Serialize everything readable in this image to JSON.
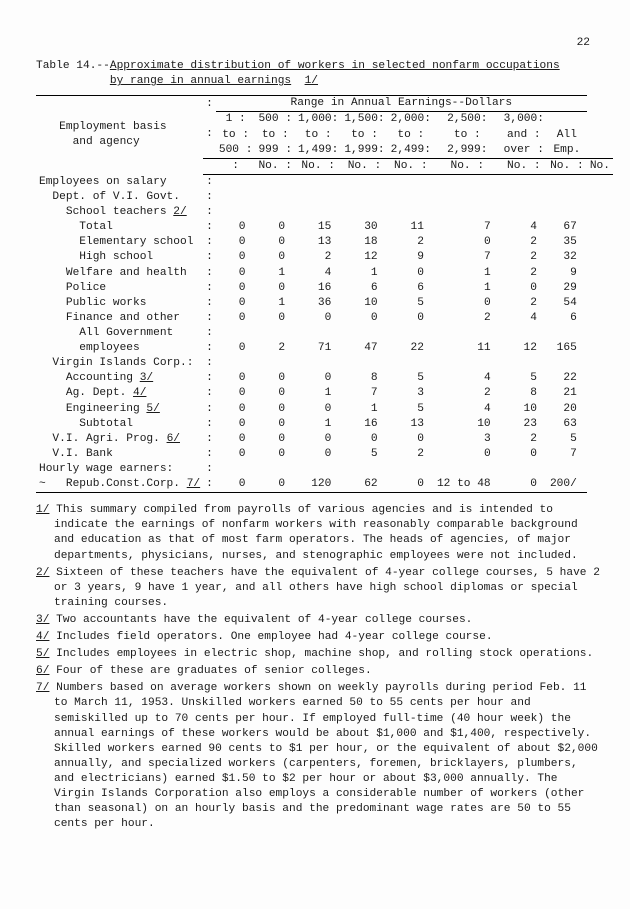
{
  "page_number": "22",
  "title_prefix": "Table 14.--",
  "title_line1": "Approximate distribution of workers in selected nonfarm occupations",
  "title_line2": "by range in annual earnings",
  "title_fn": "1/",
  "header": {
    "spanner": "Range in Annual Earnings--Dollars",
    "stub1": "Employment basis",
    "stub2": "and agency",
    "col_r1": [
      "1",
      "500",
      "1,000:",
      "1,500:",
      "2,000:",
      "2,500:",
      "3,000:",
      ""
    ],
    "col_r2": [
      "to",
      "to",
      "to  :",
      "to  :",
      "to  :",
      "to  :",
      "and :",
      "All"
    ],
    "col_r3": [
      "500",
      "999",
      "1,499:",
      "1,999:",
      "2,499:",
      "2,999:",
      "over :",
      "Emp."
    ],
    "unit_row": [
      "No. :",
      "No. :",
      "No. :",
      "No. :",
      "No. :",
      "No. :",
      "No. :",
      "No."
    ]
  },
  "rows": [
    {
      "label": "Employees on salary",
      "indent": 0,
      "vals": [
        "",
        "",
        "",
        "",
        "",
        "",
        "",
        ""
      ]
    },
    {
      "label": "Dept. of V.I. Govt.",
      "indent": 1,
      "vals": [
        "",
        "",
        "",
        "",
        "",
        "",
        "",
        ""
      ]
    },
    {
      "label": "School teachers ",
      "fn": "2/",
      "indent": 2,
      "vals": [
        "",
        "",
        "",
        "",
        "",
        "",
        "",
        ""
      ]
    },
    {
      "label": "Total",
      "indent": 3,
      "vals": [
        "0",
        "0",
        "15",
        "30",
        "11",
        "7",
        "4",
        "67"
      ]
    },
    {
      "label": "Elementary school",
      "indent": 3,
      "vals": [
        "0",
        "0",
        "13",
        "18",
        "2",
        "0",
        "2",
        "35"
      ]
    },
    {
      "label": "High school",
      "indent": 3,
      "vals": [
        "0",
        "0",
        "2",
        "12",
        "9",
        "7",
        "2",
        "32"
      ]
    },
    {
      "label": "Welfare and health",
      "indent": 2,
      "vals": [
        "0",
        "1",
        "4",
        "1",
        "0",
        "1",
        "2",
        "9"
      ]
    },
    {
      "label": "Police",
      "indent": 2,
      "vals": [
        "0",
        "0",
        "16",
        "6",
        "6",
        "1",
        "0",
        "29"
      ]
    },
    {
      "label": "Public works",
      "indent": 2,
      "vals": [
        "0",
        "1",
        "36",
        "10",
        "5",
        "0",
        "2",
        "54"
      ]
    },
    {
      "label": "Finance and other",
      "indent": 2,
      "vals": [
        "0",
        "0",
        "0",
        "0",
        "0",
        "2",
        "4",
        "6"
      ]
    },
    {
      "label": "All Government",
      "indent": 3,
      "vals": [
        "",
        "",
        "",
        "",
        "",
        "",
        "",
        ""
      ]
    },
    {
      "label": "employees",
      "indent": 3,
      "extra_indent": true,
      "vals": [
        "0",
        "2",
        "71",
        "47",
        "22",
        "11",
        "12",
        "165"
      ]
    },
    {
      "label": "Virgin Islands Corp.:",
      "indent": 1,
      "vals": [
        "",
        "",
        "",
        "",
        "",
        "",
        "",
        ""
      ]
    },
    {
      "label": "Accounting ",
      "fn": "3/",
      "indent": 2,
      "vals": [
        "0",
        "0",
        "0",
        "8",
        "5",
        "4",
        "5",
        "22"
      ]
    },
    {
      "label": "Ag. Dept. ",
      "fn": "4/",
      "indent": 2,
      "vals": [
        "0",
        "0",
        "1",
        "7",
        "3",
        "2",
        "8",
        "21"
      ]
    },
    {
      "label": "Engineering ",
      "fn": "5/",
      "indent": 2,
      "vals": [
        "0",
        "0",
        "0",
        "1",
        "5",
        "4",
        "10",
        "20"
      ]
    },
    {
      "label": "Subtotal",
      "indent": 3,
      "vals": [
        "0",
        "0",
        "1",
        "16",
        "13",
        "10",
        "23",
        "63"
      ]
    },
    {
      "label": "V.I. Agri. Prog. ",
      "fn": "6/",
      "indent": 1,
      "vals": [
        "0",
        "0",
        "0",
        "0",
        "0",
        "3",
        "2",
        "5"
      ]
    },
    {
      "label": "V.I. Bank",
      "indent": 1,
      "vals": [
        "0",
        "0",
        "0",
        "5",
        "2",
        "0",
        "0",
        "7"
      ]
    },
    {
      "label": "Hourly wage earners:",
      "indent": 0,
      "vals": [
        "",
        "",
        "",
        "",
        "",
        "",
        "",
        ""
      ]
    },
    {
      "label": "Repub.Const.Corp. ",
      "fn": "7/",
      "indent": 1,
      "prefix": "~ ",
      "vals": [
        "0",
        "0",
        "120",
        "62",
        "0",
        "12 to 48",
        "0",
        "200/"
      ]
    }
  ],
  "footnotes": [
    {
      "n": "1/",
      "text": "This summary compiled from payrolls of various agencies and is intended to indicate the earnings of nonfarm workers with reasonably comparable background and education as that of most farm operators.  The heads of agencies, of major departments, physicians, nurses, and stenographic employees were not included."
    },
    {
      "n": "2/",
      "text": "Sixteen of these teachers have the equivalent of 4-year college courses, 5 have 2 or 3 years, 9 have 1 year, and all others have high school diplomas or special training courses."
    },
    {
      "n": "3/",
      "text": "Two accountants have the equivalent of 4-year college courses."
    },
    {
      "n": "4/",
      "text": "Includes field operators.  One employee had 4-year college course."
    },
    {
      "n": "5/",
      "text": "Includes employees in electric shop, machine shop, and rolling stock operations."
    },
    {
      "n": "6/",
      "text": "Four of these are graduates of senior colleges."
    },
    {
      "n": "7/",
      "text": "Numbers based on average workers shown on weekly payrolls during period Feb. 11 to March 11, 1953.  Unskilled workers earned 50 to 55 cents per hour and semiskilled up to 70 cents per hour.  If employed full-time (40 hour week) the annual earnings of these workers would be about $1,000 and $1,400, respectively.  Skilled workers earned 90 cents to $1 per hour, or the equivalent of about $2,000 annually, and specialized workers (carpenters, foremen, bricklayers, plumbers, and electricians) earned $1.50 to $2 per hour or about $3,000 annually.  The Virgin Islands Corporation also employs a considerable number of workers (other than seasonal) on an hourly basis and the predominant wage rates are 50 to 55 cents per hour."
    }
  ]
}
